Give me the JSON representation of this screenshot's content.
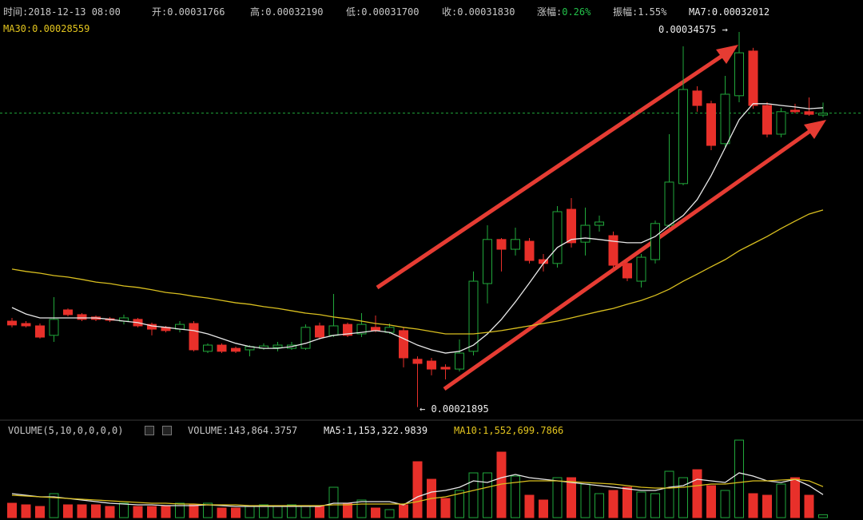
{
  "chart_data": {
    "type": "candlestick",
    "header": [
      {
        "label": "时间:",
        "value": "2018-12-13 08:00"
      },
      {
        "label": "开:",
        "value": "0.00031766"
      },
      {
        "label": "高:",
        "value": "0.00032190"
      },
      {
        "label": "低:",
        "value": "0.00031700"
      },
      {
        "label": "收:",
        "value": "0.00031830"
      },
      {
        "label": "涨幅:",
        "value": "0.26%"
      },
      {
        "label": "振幅:",
        "value": "1.55%"
      },
      {
        "label": "MA7:",
        "value": "0.00032012"
      },
      {
        "label": "MA30:",
        "value": "0.00028559"
      }
    ],
    "annotations": {
      "high": "0.00034575 →",
      "low": "← 0.00021895"
    },
    "up_color": "#21a83b",
    "down_color": "#e8302a",
    "ylim": [
      0.00021615,
      0.00035655
    ],
    "open": [
      0.000248,
      0.0002472,
      0.0002464,
      0.0002432,
      0.0002518,
      0.0002502,
      0.0002494,
      0.0002488,
      0.000248,
      0.0002486,
      0.0002469,
      0.0002459,
      0.0002453,
      0.0002472,
      0.0002378,
      0.0002399,
      0.0002388,
      0.0002383,
      0.0002388,
      0.0002391,
      0.0002388,
      0.0002388,
      0.0002464,
      0.0002432,
      0.0002469,
      0.0002437,
      0.0002459,
      0.0002442,
      0.0002448,
      0.0002351,
      0.0002345,
      0.0002324,
      0.0002318,
      0.0002378,
      0.0002607,
      0.0002756,
      0.0002723,
      0.000275,
      0.0002688,
      0.0002675,
      0.0002858,
      0.0002747,
      0.0002804,
      0.0002769,
      0.0002675,
      0.0002615,
      0.0002688,
      0.0002804,
      0.0002945,
      0.0003258,
      0.0003215,
      0.000308,
      0.0003242,
      0.0003393,
      0.0003209,
      0.0003112,
      0.0003193,
      0.0003188,
      0.00031766
    ],
    "high": [
      0.0002491,
      0.000248,
      0.0002472,
      0.0002561,
      0.0002523,
      0.0002507,
      0.0002499,
      0.0002494,
      0.0002502,
      0.0002491,
      0.0002475,
      0.0002464,
      0.000248,
      0.000248,
      0.0002405,
      0.0002405,
      0.0002394,
      0.0002399,
      0.0002405,
      0.000241,
      0.000241,
      0.0002469,
      0.0002475,
      0.0002572,
      0.0002475,
      0.0002507,
      0.0002499,
      0.0002472,
      0.0002459,
      0.0002361,
      0.0002356,
      0.0002334,
      0.0002418,
      0.0002648,
      0.0002804,
      0.0002761,
      0.0002796,
      0.0002761,
      0.0002707,
      0.0002869,
      0.0002896,
      0.0002864,
      0.0002837,
      0.0002783,
      0.0002688,
      0.0002707,
      0.000282,
      0.0003112,
      0.0003409,
      0.0003274,
      0.0003225,
      0.0003309,
      0.00034575,
      0.0003404,
      0.000322,
      0.0003201,
      0.0003215,
      0.0003236,
      0.0003219
    ],
    "low": [
      0.0002459,
      0.0002459,
      0.0002421,
      0.000241,
      0.0002496,
      0.000248,
      0.000248,
      0.0002477,
      0.0002469,
      0.0002459,
      0.0002432,
      0.0002442,
      0.0002442,
      0.0002378,
      0.0002372,
      0.0002372,
      0.0002372,
      0.0002361,
      0.0002383,
      0.0002378,
      0.0002383,
      0.0002383,
      0.0002418,
      0.0002426,
      0.0002426,
      0.0002426,
      0.0002442,
      0.0002437,
      0.0002324,
      0.00021895,
      0.0002297,
      0.0002283,
      0.000231,
      0.0002364,
      0.000254,
      0.0002648,
      0.0002702,
      0.0002675,
      0.0002648,
      0.0002661,
      0.0002729,
      0.0002702,
      0.0002783,
      0.0002648,
      0.0002615,
      0.0002594,
      0.0002675,
      0.0002796,
      0.0002939,
      0.0003188,
      0.0003058,
      0.0003066,
      0.000322,
      0.0003198,
      0.0003101,
      0.0003101,
      0.0003182,
      0.0003174,
      0.000317
    ],
    "close": [
      0.0002467,
      0.0002464,
      0.0002426,
      0.0002486,
      0.0002502,
      0.0002486,
      0.0002486,
      0.0002483,
      0.0002491,
      0.0002464,
      0.0002453,
      0.0002448,
      0.0002469,
      0.0002383,
      0.0002399,
      0.0002378,
      0.0002378,
      0.0002394,
      0.0002396,
      0.0002399,
      0.0002399,
      0.0002459,
      0.0002426,
      0.0002464,
      0.0002432,
      0.0002469,
      0.0002448,
      0.0002459,
      0.0002356,
      0.0002337,
      0.0002318,
      0.0002318,
      0.0002372,
      0.0002615,
      0.0002756,
      0.0002723,
      0.0002756,
      0.0002685,
      0.0002675,
      0.000285,
      0.0002745,
      0.0002804,
      0.0002815,
      0.0002669,
      0.0002626,
      0.0002696,
      0.000281,
      0.000295,
      0.0003263,
      0.0003209,
      0.0003074,
      0.0003247,
      0.0003387,
      0.0003209,
      0.0003112,
      0.0003188,
      0.0003188,
      0.0003179,
      0.0003183
    ],
    "ma_lines": [
      {
        "color": "#e8e8e8",
        "values": [
          0.0002526,
          0.0002504,
          0.0002491,
          0.0002491,
          0.0002491,
          0.0002491,
          0.0002491,
          0.0002486,
          0.000248,
          0.0002475,
          0.0002464,
          0.0002459,
          0.0002453,
          0.0002448,
          0.0002437,
          0.0002421,
          0.0002405,
          0.0002394,
          0.0002388,
          0.0002388,
          0.0002394,
          0.0002405,
          0.0002421,
          0.0002432,
          0.0002437,
          0.0002442,
          0.0002448,
          0.0002442,
          0.0002421,
          0.0002399,
          0.0002383,
          0.0002372,
          0.0002378,
          0.0002399,
          0.0002437,
          0.0002486,
          0.0002545,
          0.0002609,
          0.0002675,
          0.0002729,
          0.0002756,
          0.0002761,
          0.0002756,
          0.000275,
          0.0002745,
          0.0002745,
          0.0002766,
          0.0002804,
          0.0002837,
          0.0002891,
          0.0002972,
          0.0003066,
          0.0003161,
          0.0003215,
          0.0003215,
          0.0003209,
          0.0003204,
          0.0003198,
          0.00032012
        ]
      },
      {
        "color": "#d9bf1f",
        "values": [
          0.0002656,
          0.0002648,
          0.0002642,
          0.0002634,
          0.0002629,
          0.0002621,
          0.0002612,
          0.0002607,
          0.0002599,
          0.0002594,
          0.0002586,
          0.0002577,
          0.0002572,
          0.0002564,
          0.0002558,
          0.000255,
          0.0002542,
          0.0002537,
          0.0002529,
          0.0002523,
          0.0002515,
          0.0002507,
          0.0002502,
          0.0002494,
          0.0002488,
          0.000248,
          0.0002472,
          0.0002467,
          0.0002459,
          0.0002453,
          0.0002445,
          0.0002437,
          0.0002437,
          0.0002437,
          0.0002442,
          0.0002448,
          0.0002456,
          0.0002464,
          0.0002472,
          0.000248,
          0.0002491,
          0.0002502,
          0.0002513,
          0.0002523,
          0.0002537,
          0.000255,
          0.0002567,
          0.0002588,
          0.0002615,
          0.0002639,
          0.0002664,
          0.0002688,
          0.0002718,
          0.0002742,
          0.0002766,
          0.0002793,
          0.0002818,
          0.0002842,
          0.00028559
        ]
      }
    ],
    "volume": {
      "header": {
        "name": "VOLUME(5,10,0,0,0,0)",
        "volume": "VOLUME:143,864.3757",
        "ma5": "MA5:1,153,322.9839",
        "ma10": "MA10:1,552,699.7866"
      },
      "ylim": [
        0,
        4600000
      ],
      "values": [
        720000,
        640000,
        560000,
        1200000,
        640000,
        640000,
        640000,
        560000,
        720000,
        560000,
        560000,
        560000,
        720000,
        640000,
        720000,
        480000,
        480000,
        560000,
        640000,
        560000,
        640000,
        560000,
        560000,
        1520000,
        720000,
        880000,
        480000,
        400000,
        640000,
        2800000,
        1920000,
        960000,
        1360000,
        2240000,
        2240000,
        3280000,
        2080000,
        1120000,
        880000,
        2000000,
        2000000,
        1680000,
        1200000,
        1360000,
        1520000,
        1280000,
        1200000,
        2320000,
        2000000,
        2400000,
        1600000,
        1360000,
        3880000,
        1200000,
        1120000,
        1680000,
        2000000,
        1120000,
        143864.3757
      ],
      "ma_lines": [
        {
          "color": "#e8e8e8",
          "values": [
            1200000,
            1120000,
            1040000,
            1040000,
            960000,
            880000,
            800000,
            720000,
            680000,
            640000,
            640000,
            600000,
            600000,
            600000,
            640000,
            600000,
            560000,
            560000,
            560000,
            560000,
            560000,
            560000,
            560000,
            720000,
            720000,
            800000,
            800000,
            800000,
            640000,
            1040000,
            1280000,
            1360000,
            1520000,
            1840000,
            1760000,
            2000000,
            2160000,
            2000000,
            1920000,
            1840000,
            1760000,
            1680000,
            1600000,
            1520000,
            1440000,
            1360000,
            1360000,
            1520000,
            1600000,
            1920000,
            1840000,
            1760000,
            2240000,
            2080000,
            1840000,
            1760000,
            1920000,
            1600000,
            1153322.9839
          ]
        },
        {
          "color": "#d9bf1f",
          "values": [
            1120000,
            1080000,
            1040000,
            1000000,
            960000,
            920000,
            880000,
            840000,
            800000,
            760000,
            720000,
            720000,
            680000,
            680000,
            640000,
            640000,
            640000,
            600000,
            600000,
            600000,
            600000,
            600000,
            600000,
            640000,
            640000,
            680000,
            680000,
            680000,
            680000,
            800000,
            960000,
            1040000,
            1200000,
            1360000,
            1520000,
            1680000,
            1760000,
            1840000,
            1840000,
            1840000,
            1800000,
            1760000,
            1720000,
            1680000,
            1600000,
            1520000,
            1480000,
            1480000,
            1520000,
            1600000,
            1680000,
            1680000,
            1760000,
            1840000,
            1840000,
            1880000,
            1920000,
            1840000,
            1552699.7866
          ]
        }
      ]
    }
  }
}
